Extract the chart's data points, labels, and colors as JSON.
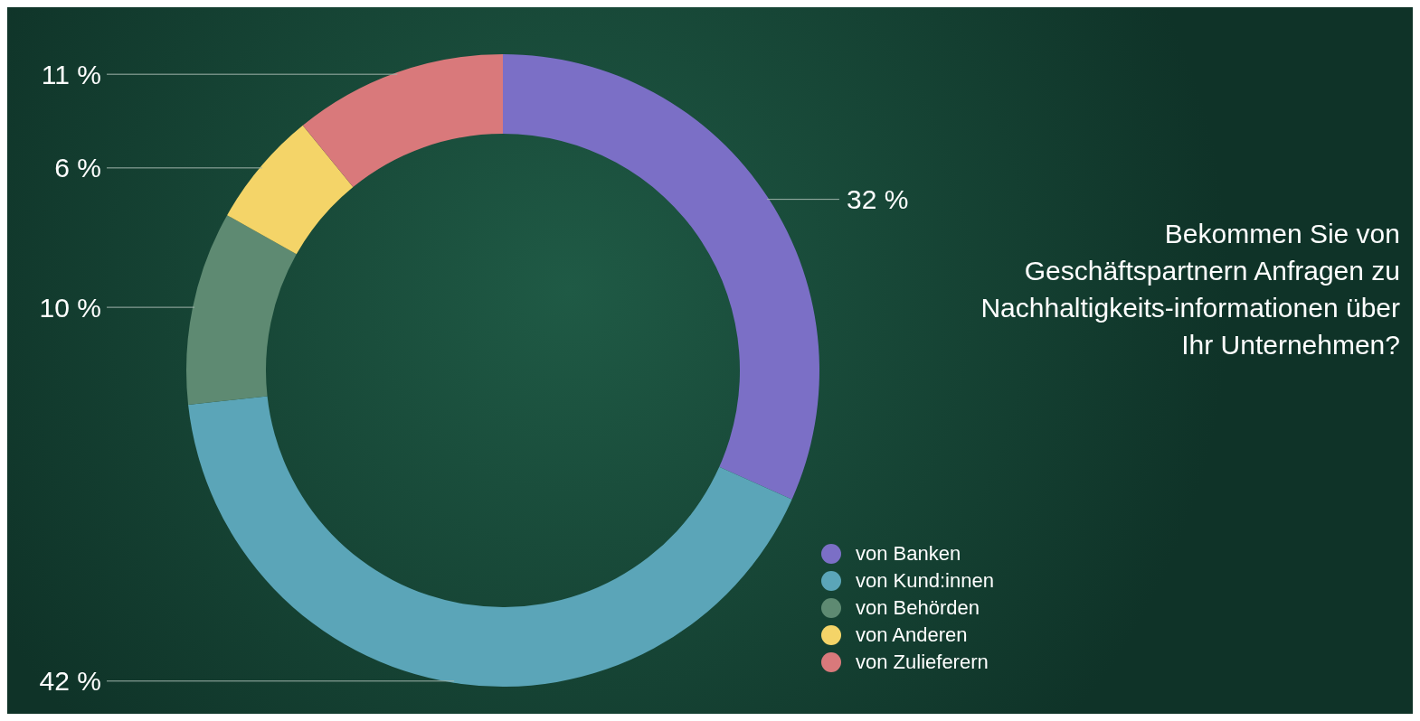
{
  "chart_data": {
    "type": "donut",
    "title": "Bekommen Sie von Geschäftspartnern Anfragen zu Nachhaltigkeits-informationen über Ihr Unternehmen?",
    "categories": [
      "von Banken",
      "von Kund:innen",
      "von Behörden",
      "von Anderen",
      "von Zulieferern"
    ],
    "values": [
      32,
      42,
      10,
      6,
      11
    ],
    "value_labels": [
      "32 %",
      "42 %",
      "10 %",
      "6 %",
      "11 %"
    ],
    "colors": [
      "#7b6fc6",
      "#5ba5b8",
      "#5e8a72",
      "#f4d468",
      "#d9797b"
    ],
    "legend": "bottom right"
  }
}
